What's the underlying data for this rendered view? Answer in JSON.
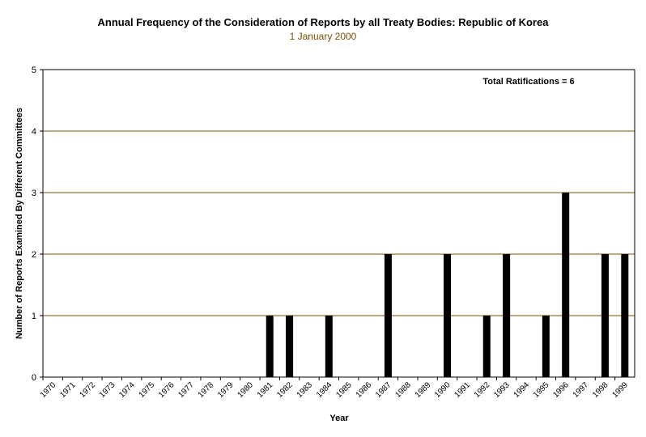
{
  "chart_data": {
    "type": "bar",
    "title": "Annual Frequency of the Consideration of Reports by all Treaty Bodies: Republic of Korea",
    "subtitle": "1 January 2000",
    "xlabel": "Year",
    "ylabel": "Number of Reports Examined By Different Committees",
    "ylim": [
      0,
      5
    ],
    "yticks": [
      "0",
      "1",
      "2",
      "3",
      "4",
      "5"
    ],
    "grid": true,
    "annotation": "Total Ratifications = 6",
    "categories": [
      "1970",
      "1971",
      "1972",
      "1973",
      "1974",
      "1975",
      "1976",
      "1977",
      "1978",
      "1979",
      "1980",
      "1981",
      "1982",
      "1983",
      "1984",
      "1985",
      "1986",
      "1987",
      "1988",
      "1989",
      "1990",
      "1991",
      "1992",
      "1993",
      "1994",
      "1995",
      "1996",
      "1997",
      "1998",
      "1999"
    ],
    "values": [
      0,
      0,
      0,
      0,
      0,
      0,
      0,
      0,
      0,
      0,
      0,
      1,
      1,
      0,
      1,
      0,
      0,
      2,
      0,
      0,
      2,
      0,
      1,
      2,
      0,
      1,
      3,
      0,
      2,
      2
    ],
    "colors": {
      "bar": "#000000",
      "grid": "#7a5200",
      "subtitle": "#7a5200"
    }
  }
}
